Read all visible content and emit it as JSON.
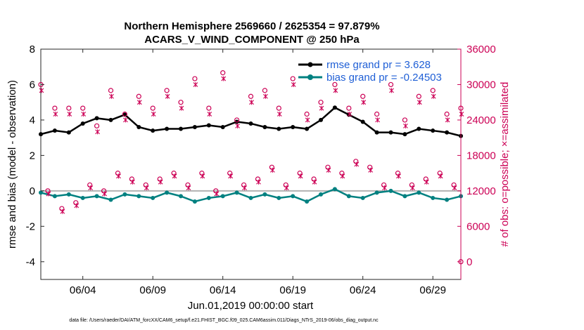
{
  "chart_data": {
    "type": "line",
    "title_line1": "Northern Hemisphere 2569660 / 2625354 = 97.879%",
    "title_line2": "ACARS_V_WIND_COMPONENT @ 250 hPa",
    "xlabel": "Jun.01,2019 00:00:00 start",
    "ylabel": "rmse and bias (model - observation)",
    "y2label": "# of obs: o=possible; ×=assimilated",
    "footnote": "data file: /Users/raeder/DAI/ATM_forcXX/CAM6_setup/f.e21.FHIST_BGC.f09_025.CAM6assim.011/Diags_NTrS_2019-06/obs_diag_output.nc",
    "xlim": [
      1,
      31
    ],
    "ylim": [
      -5,
      8
    ],
    "y2lim": [
      -3000,
      36000
    ],
    "x_ticks": [
      4,
      9,
      14,
      19,
      24,
      29
    ],
    "x_tick_labels": [
      "06/04",
      "06/09",
      "06/14",
      "06/19",
      "06/24",
      "06/29"
    ],
    "y_ticks": [
      -4,
      -2,
      0,
      2,
      4,
      6,
      8
    ],
    "y_tick_labels": [
      "-4",
      "-2",
      "0",
      "2",
      "4",
      "6",
      "8"
    ],
    "y2_ticks": [
      0,
      6000,
      12000,
      18000,
      24000,
      30000,
      36000
    ],
    "y2_tick_labels": [
      "0",
      "6000",
      "12000",
      "18000",
      "24000",
      "30000",
      "36000"
    ],
    "series": [
      {
        "name": "rmse grand pr = 3.628",
        "color": "#000000",
        "marker": "star",
        "x": [
          1,
          2,
          3,
          4,
          5,
          6,
          7,
          8,
          9,
          10,
          11,
          12,
          13,
          14,
          15,
          16,
          17,
          18,
          19,
          20,
          21,
          22,
          23,
          24,
          25,
          26,
          27,
          28,
          29,
          30,
          31
        ],
        "values": [
          3.2,
          3.4,
          3.3,
          3.8,
          4.1,
          4.0,
          4.3,
          3.6,
          3.4,
          3.5,
          3.5,
          3.6,
          3.7,
          3.6,
          3.9,
          3.8,
          3.6,
          3.5,
          3.6,
          3.5,
          4.0,
          4.7,
          4.3,
          3.9,
          3.3,
          3.3,
          3.2,
          3.5,
          3.4,
          3.3,
          3.1
        ]
      },
      {
        "name": "bias grand pr = -0.24503",
        "color": "#008080",
        "marker": "circle",
        "x": [
          1,
          2,
          3,
          4,
          5,
          6,
          7,
          8,
          9,
          10,
          11,
          12,
          13,
          14,
          15,
          16,
          17,
          18,
          19,
          20,
          21,
          22,
          23,
          24,
          25,
          26,
          27,
          28,
          29,
          30,
          31
        ],
        "values": [
          -0.1,
          -0.3,
          -0.2,
          -0.4,
          -0.3,
          -0.5,
          -0.2,
          -0.3,
          -0.4,
          -0.1,
          -0.3,
          -0.6,
          -0.4,
          -0.3,
          -0.1,
          -0.4,
          -0.2,
          -0.4,
          -0.3,
          -0.6,
          -0.2,
          0.1,
          -0.3,
          -0.4,
          -0.1,
          0.0,
          -0.3,
          -0.1,
          -0.4,
          -0.5,
          -0.3
        ]
      },
      {
        "name": "obs possible",
        "color": "#cc0055",
        "marker": "o",
        "x": [
          1,
          1.5,
          2,
          2.5,
          3,
          3.5,
          4,
          4.5,
          5,
          5.5,
          6,
          6.5,
          7,
          7.5,
          8,
          8.5,
          9,
          9.5,
          10,
          10.5,
          11,
          11.5,
          12,
          12.5,
          13,
          13.5,
          14,
          14.5,
          15,
          15.5,
          16,
          16.5,
          17,
          17.5,
          18,
          18.5,
          19,
          19.5,
          20,
          20.5,
          21,
          21.5,
          22,
          22.5,
          23,
          23.5,
          24,
          24.5,
          25,
          25.5,
          26,
          26.5,
          27,
          27.5,
          28,
          28.5,
          29,
          29.5,
          30,
          30.5,
          31
        ],
        "values": [
          30000,
          12000,
          26000,
          9000,
          26000,
          10000,
          26000,
          13000,
          23000,
          12000,
          29000,
          15000,
          25000,
          14000,
          28000,
          13000,
          26000,
          14000,
          29000,
          15000,
          27000,
          13000,
          31000,
          15000,
          26000,
          12000,
          32000,
          15000,
          24000,
          13000,
          28000,
          14000,
          29000,
          16000,
          26000,
          13000,
          31000,
          15000,
          25000,
          14000,
          27000,
          16000,
          30000,
          15000,
          26000,
          17000,
          28000,
          16000,
          25000,
          13000,
          30000,
          15000,
          24000,
          13000,
          28000,
          14000,
          29000,
          15000,
          25000,
          13000,
          26000
        ]
      },
      {
        "name": "obs assimilated",
        "color": "#cc0055",
        "marker": "x",
        "x": [
          1,
          1.5,
          2,
          2.5,
          3,
          3.5,
          4,
          4.5,
          5,
          5.5,
          6,
          6.5,
          7,
          7.5,
          8,
          8.5,
          9,
          9.5,
          10,
          10.5,
          11,
          11.5,
          12,
          12.5,
          13,
          13.5,
          14,
          14.5,
          15,
          15.5,
          16,
          16.5,
          17,
          17.5,
          18,
          18.5,
          19,
          19.5,
          20,
          20.5,
          21,
          21.5,
          22,
          22.5,
          23,
          23.5,
          24,
          24.5,
          25,
          25.5,
          26,
          26.5,
          27,
          27.5,
          28,
          28.5,
          29,
          29.5,
          30,
          30.5,
          31
        ],
        "values": [
          29000,
          11500,
          25000,
          8500,
          25000,
          9500,
          25000,
          12500,
          22000,
          11500,
          28000,
          14500,
          24000,
          13500,
          27000,
          12500,
          25000,
          13500,
          28000,
          14500,
          26000,
          12500,
          30000,
          14500,
          25000,
          11500,
          31000,
          14500,
          23000,
          12500,
          27000,
          13500,
          28000,
          15500,
          25000,
          12500,
          30000,
          14500,
          24000,
          13500,
          26000,
          15500,
          29000,
          14500,
          25000,
          16500,
          27000,
          15500,
          24000,
          12500,
          29000,
          14500,
          23000,
          12500,
          27000,
          13500,
          28000,
          14500,
          24000,
          12500,
          25000
        ]
      }
    ],
    "legend_position": "top-right"
  }
}
